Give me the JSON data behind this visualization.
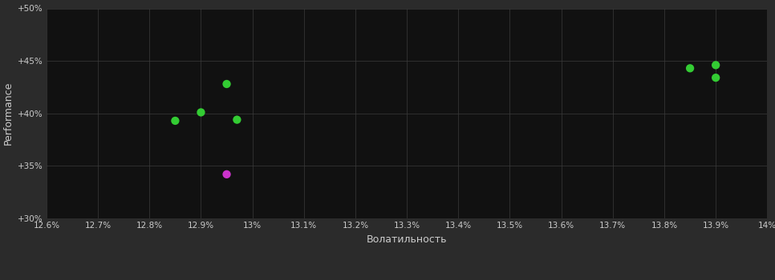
{
  "background_color": "#2b2b2b",
  "plot_bg_color": "#111111",
  "grid_color": "#3c3c3c",
  "text_color": "#cccccc",
  "xlabel": "Волатильность",
  "ylabel": "Performance",
  "xlim": [
    0.126,
    0.14
  ],
  "ylim": [
    0.3,
    0.5
  ],
  "xticks": [
    0.126,
    0.127,
    0.128,
    0.129,
    0.13,
    0.131,
    0.132,
    0.133,
    0.134,
    0.135,
    0.136,
    0.137,
    0.138,
    0.139,
    0.14
  ],
  "yticks": [
    0.3,
    0.35,
    0.4,
    0.45,
    0.5
  ],
  "green_points": [
    [
      0.1285,
      0.393
    ],
    [
      0.129,
      0.401
    ],
    [
      0.1295,
      0.428
    ],
    [
      0.1297,
      0.394
    ],
    [
      0.1385,
      0.443
    ],
    [
      0.139,
      0.446
    ],
    [
      0.139,
      0.434
    ]
  ],
  "magenta_points": [
    [
      0.1295,
      0.342
    ]
  ],
  "green_color": "#33cc33",
  "magenta_color": "#cc33cc",
  "marker_size": 55,
  "tick_fontsize": 7.5,
  "label_fontsize": 9,
  "ylabel_fontsize": 9
}
